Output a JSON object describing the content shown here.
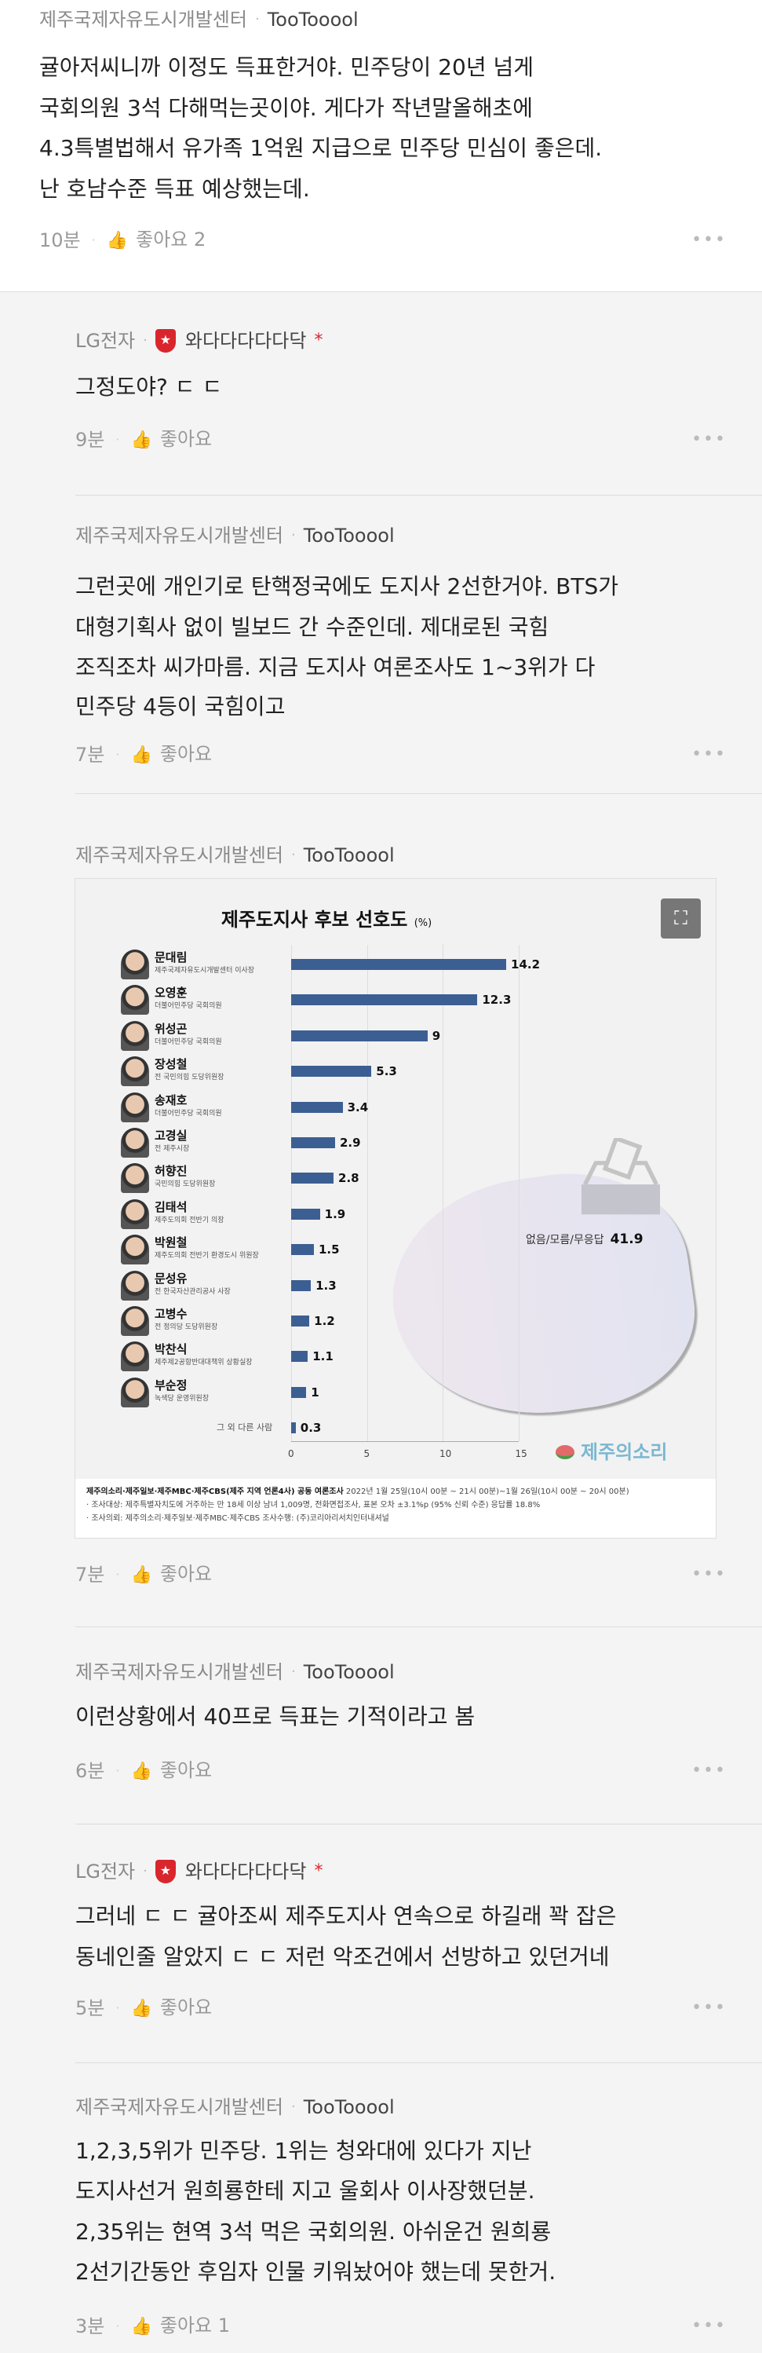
{
  "comments": [
    {
      "group": "제주국제자유도시개발센터",
      "nick": "TooTooool",
      "lines": [
        "귤아저씨니까 이정도 득표한거야. 민주당이 20년 넘게",
        "국회의원 3석 다해먹는곳이야. 게다가 작년말올해초에",
        "4.3특별법해서 유가족 1억원 지급으로 민주당 민심이 좋은데.",
        "난 호남수준 득표 예상했는데."
      ],
      "time": "10분",
      "like": "좋아요 2"
    },
    {
      "group": "LG전자",
      "nick": "와다다다다다닥",
      "star": "*",
      "lines": [
        "그정도야? ㄷ ㄷ"
      ],
      "time": "9분",
      "like": "좋아요"
    },
    {
      "group": "제주국제자유도시개발센터",
      "nick": "TooTooool",
      "lines": [
        "그런곳에 개인기로 탄핵정국에도 도지사 2선한거야. BTS가",
        "대형기획사 없이 빌보드 간 수준인데. 제대로된 국힘",
        "조직조차 씨가마름. 지금 도지사 여론조사도 1~3위가 다",
        "민주당 4등이 국힘이고"
      ],
      "time": "7분",
      "like": "좋아요"
    },
    {
      "group": "제주국제자유도시개발센터",
      "nick": "TooTooool",
      "lines": [],
      "time": "7분",
      "like": "좋아요"
    },
    {
      "group": "제주국제자유도시개발센터",
      "nick": "TooTooool",
      "lines": [
        "이런상황에서 40프로 득표는 기적이라고 봄"
      ],
      "time": "6분",
      "like": "좋아요"
    },
    {
      "group": "LG전자",
      "nick": "와다다다다다닥",
      "star": "*",
      "lines": [
        "그러네 ㄷ ㄷ 귤아조씨 제주도지사 연속으로 하길래 꽉 잡은",
        "동네인줄 알았지 ㄷ ㄷ 저런 악조건에서 선방하고 있던거네"
      ],
      "time": "5분",
      "like": "좋아요"
    },
    {
      "group": "제주국제자유도시개발센터",
      "nick": "TooTooool",
      "lines": [
        "1,2,3,5위가 민주당. 1위는 청와대에 있다가 지난",
        "도지사선거 원희룡한테 지고 울회사 이사장했던분.",
        "2,35위는 현역 3석 먹은 국회의원. 아쉬운건 원희룡",
        "2선기간동안 후임자 인물 키워놨어야 했는데 못한거."
      ],
      "time": "3분",
      "like": "좋아요 1"
    }
  ],
  "chart_data": {
    "type": "bar",
    "orientation": "horizontal",
    "title": "제주도지사 후보 선호도",
    "unit": "(%)",
    "categories": [
      "문대림",
      "오영훈",
      "위성곤",
      "장성철",
      "송재호",
      "고경실",
      "허향진",
      "김태석",
      "박원철",
      "문성유",
      "고병수",
      "박찬식",
      "부순정",
      "그 외 다른 사람"
    ],
    "roles": [
      "제주국제자유도시개발센터 이사장",
      "더불어민주당 국회의원",
      "더불어민주당 국회의원",
      "전 국민의힘 도당위원장",
      "더불어민주당 국회의원",
      "전 제주시장",
      "국민의힘 도당위원장",
      "제주도의회 전반기 의장",
      "제주도의회 전반기 환경도시 위원장",
      "전 한국자산관리공사 사장",
      "전 정의당 도당위원장",
      "제주제2공항반대대책위 상황실장",
      "녹색당 운영위원장",
      ""
    ],
    "values": [
      14.2,
      12.3,
      9,
      5.3,
      3.4,
      2.9,
      2.8,
      1.9,
      1.5,
      1.3,
      1.2,
      1.1,
      1,
      0.3
    ],
    "xticks": [
      0,
      5,
      10,
      15
    ],
    "xlim": [
      0,
      15
    ],
    "grid": true,
    "bar_color": "#3c5f93",
    "annotation": {
      "label": "없음/모름/무응답",
      "value": "41.9"
    },
    "logo": "제주의소리",
    "notes": [
      "제주의소리·제주일보·제주MBC·제주CBS(제주 지역 언론4사) 공동 여론조사",
      "2022년 1월 25일(10시 00분 ~ 21시 00분)~1월 26일(10시 00분 ~ 20시 00분)",
      "· 조사대상: 제주특별자치도에 거주하는 만 18세 이상 남녀 1,009명, 전화면접조사, 표본 오차 ±3.1%p (95% 신뢰 수준) 응답률 18.8%",
      "· 조사의뢰: 제주의소리·제주일보·제주MBC·제주CBS    조사수행: (주)코리아리서치인터내셔널"
    ]
  }
}
